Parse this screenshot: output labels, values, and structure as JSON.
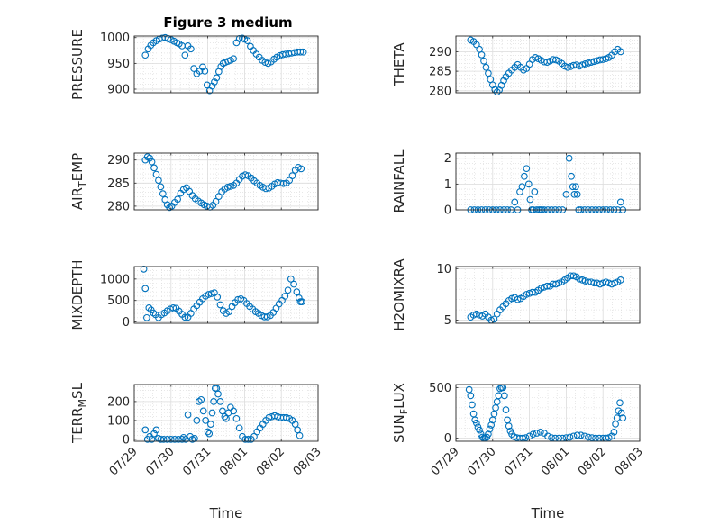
{
  "figure_title": "Figure 3 medium",
  "chart_data": [
    {
      "type": "scatter",
      "position": "top-left",
      "ylabel": "PRESSURE",
      "xlabel": "",
      "ylim": [
        893,
        1003
      ],
      "yticks": [
        900,
        950,
        1000
      ],
      "xlim": [
        0,
        5
      ],
      "grid": true,
      "marker": "circle",
      "color": "#0072BD",
      "x": [
        0.3,
        0.38,
        0.45,
        0.52,
        0.6,
        0.68,
        0.76,
        0.84,
        0.92,
        1.0,
        1.08,
        1.16,
        1.22,
        1.3,
        1.38,
        1.46,
        1.54,
        1.62,
        1.7,
        1.78,
        1.86,
        1.92,
        1.98,
        2.05,
        2.12,
        2.18,
        2.24,
        2.3,
        2.36,
        2.42,
        2.48,
        2.55,
        2.62,
        2.7,
        2.78,
        2.86,
        2.94,
        3.0,
        3.08,
        3.16,
        3.24,
        3.32,
        3.4,
        3.48,
        3.56,
        3.64,
        3.72,
        3.8,
        3.88,
        3.96,
        4.04,
        4.12,
        4.2,
        4.28,
        4.36,
        4.44,
        4.52,
        4.6
      ],
      "y": [
        966,
        978,
        985,
        990,
        994,
        997,
        999,
        1000,
        998,
        996,
        993,
        990,
        988,
        984,
        966,
        984,
        978,
        940,
        930,
        935,
        943,
        935,
        908,
        897,
        906,
        914,
        922,
        934,
        944,
        950,
        952,
        954,
        956,
        959,
        990,
        998,
        999,
        997,
        994,
        983,
        975,
        968,
        962,
        956,
        952,
        950,
        953,
        958,
        962,
        965,
        967,
        968,
        969,
        970,
        971,
        972,
        972,
        972
      ]
    },
    {
      "type": "scatter",
      "position": "top-right",
      "ylabel": "THETA",
      "xlabel": "",
      "ylim": [
        279.5,
        294
      ],
      "yticks": [
        280,
        285,
        290
      ],
      "xlim": [
        0,
        5
      ],
      "grid": true,
      "marker": "circle",
      "color": "#0072BD",
      "x": [
        0.4,
        0.48,
        0.56,
        0.64,
        0.7,
        0.76,
        0.82,
        0.88,
        0.94,
        1.0,
        1.06,
        1.12,
        1.18,
        1.24,
        1.3,
        1.36,
        1.44,
        1.52,
        1.6,
        1.68,
        1.76,
        1.84,
        1.92,
        2.0,
        2.08,
        2.16,
        2.24,
        2.32,
        2.4,
        2.48,
        2.56,
        2.64,
        2.72,
        2.8,
        2.88,
        2.96,
        3.04,
        3.12,
        3.2,
        3.28,
        3.36,
        3.44,
        3.52,
        3.6,
        3.68,
        3.76,
        3.84,
        3.92,
        4.0,
        4.08,
        4.16,
        4.24,
        4.32,
        4.4,
        4.48
      ],
      "y": [
        293,
        292.6,
        291.8,
        290.6,
        289.2,
        287.6,
        286.0,
        284.5,
        282.9,
        281.5,
        280.3,
        279.7,
        280.2,
        281.4,
        282.6,
        283.6,
        284.5,
        285.3,
        286.0,
        286.7,
        286.0,
        285.3,
        285.7,
        286.8,
        288.0,
        288.5,
        288.2,
        287.8,
        287.4,
        287.3,
        287.6,
        288.0,
        287.9,
        287.6,
        287.0,
        286.3,
        286.0,
        286.2,
        286.5,
        286.6,
        286.3,
        286.6,
        286.9,
        287.1,
        287.3,
        287.5,
        287.7,
        287.9,
        288.0,
        288.2,
        288.5,
        289.1,
        290.0,
        290.6,
        290.0
      ]
    },
    {
      "type": "scatter",
      "position": "second-row-left",
      "ylabel": "AIR_TEMP",
      "xlabel": "",
      "ylim": [
        279.2,
        291.5
      ],
      "yticks": [
        280,
        285,
        290
      ],
      "xlim": [
        0,
        5
      ],
      "grid": true,
      "marker": "circle",
      "color": "#0072BD",
      "x": [
        0.3,
        0.36,
        0.42,
        0.48,
        0.54,
        0.6,
        0.66,
        0.72,
        0.78,
        0.84,
        0.9,
        0.96,
        1.02,
        1.1,
        1.18,
        1.26,
        1.34,
        1.42,
        1.5,
        1.58,
        1.66,
        1.74,
        1.82,
        1.9,
        1.98,
        2.06,
        2.14,
        2.22,
        2.3,
        2.38,
        2.46,
        2.54,
        2.62,
        2.7,
        2.78,
        2.86,
        2.94,
        3.02,
        3.1,
        3.18,
        3.26,
        3.34,
        3.42,
        3.5,
        3.58,
        3.66,
        3.74,
        3.82,
        3.9,
        3.98,
        4.06,
        4.14,
        4.22,
        4.3,
        4.38,
        4.46,
        4.54
      ],
      "y": [
        290.0,
        290.7,
        290.4,
        289.6,
        288.3,
        286.9,
        285.6,
        284.2,
        282.7,
        281.4,
        280.3,
        279.7,
        280.0,
        280.8,
        281.5,
        282.8,
        283.6,
        284.0,
        283.2,
        282.3,
        281.6,
        281.1,
        280.7,
        280.3,
        280.0,
        279.8,
        280.2,
        281.0,
        282.1,
        283.1,
        283.7,
        284.1,
        284.3,
        284.5,
        285.0,
        285.8,
        286.5,
        286.8,
        286.6,
        286.1,
        285.5,
        285.0,
        284.5,
        284.1,
        283.8,
        283.9,
        284.3,
        284.8,
        285.1,
        285.0,
        284.9,
        285.0,
        285.6,
        286.6,
        287.8,
        288.4,
        288.1
      ]
    },
    {
      "type": "scatter",
      "position": "second-row-right",
      "ylabel": "RAINFALL",
      "xlabel": "",
      "ylim": [
        0,
        2.2
      ],
      "yticks": [
        0,
        1,
        2
      ],
      "xlim": [
        0,
        5
      ],
      "grid": true,
      "marker": "circle",
      "color": "#0072BD",
      "x": [
        0.4,
        0.5,
        0.6,
        0.7,
        0.8,
        0.9,
        1.0,
        1.1,
        1.2,
        1.3,
        1.4,
        1.5,
        1.6,
        1.68,
        1.74,
        1.8,
        1.86,
        1.92,
        1.98,
        2.02,
        2.06,
        2.1,
        2.14,
        2.2,
        2.26,
        2.3,
        2.34,
        2.4,
        2.5,
        2.6,
        2.7,
        2.8,
        2.9,
        3.0,
        3.08,
        3.14,
        3.18,
        3.22,
        3.26,
        3.3,
        3.34,
        3.4,
        3.5,
        3.6,
        3.7,
        3.8,
        3.9,
        4.0,
        4.1,
        4.2,
        4.3,
        4.4,
        4.48,
        4.54
      ],
      "y": [
        0,
        0,
        0,
        0,
        0,
        0,
        0,
        0,
        0,
        0,
        0,
        0,
        0.3,
        0,
        0.7,
        0.9,
        1.3,
        1.6,
        1.0,
        0.4,
        0,
        0,
        0.7,
        0,
        0,
        0,
        0,
        0,
        0,
        0,
        0,
        0,
        0,
        0.6,
        2.0,
        1.3,
        0.9,
        0.6,
        0.9,
        0.6,
        0,
        0,
        0,
        0,
        0,
        0,
        0,
        0,
        0,
        0,
        0,
        0,
        0.3,
        0
      ]
    },
    {
      "type": "scatter",
      "position": "third-row-left",
      "ylabel": "MIXDEPTH",
      "xlabel": "",
      "ylim": [
        -30,
        1290
      ],
      "yticks": [
        0,
        500,
        1000
      ],
      "xlim": [
        0,
        5
      ],
      "grid": true,
      "marker": "circle",
      "color": "#0072BD",
      "x": [
        0.26,
        0.3,
        0.34,
        0.4,
        0.46,
        0.52,
        0.58,
        0.66,
        0.74,
        0.82,
        0.9,
        0.98,
        1.06,
        1.14,
        1.22,
        1.3,
        1.38,
        1.46,
        1.54,
        1.62,
        1.7,
        1.78,
        1.86,
        1.94,
        2.02,
        2.1,
        2.18,
        2.26,
        2.34,
        2.42,
        2.5,
        2.58,
        2.66,
        2.74,
        2.82,
        2.9,
        2.98,
        3.06,
        3.14,
        3.22,
        3.3,
        3.38,
        3.46,
        3.54,
        3.62,
        3.7,
        3.78,
        3.86,
        3.94,
        4.02,
        4.1,
        4.18,
        4.26,
        4.34,
        4.42,
        4.48,
        4.52,
        4.56
      ],
      "y": [
        1230,
        780,
        100,
        330,
        280,
        210,
        170,
        100,
        170,
        210,
        260,
        300,
        330,
        320,
        250,
        180,
        110,
        110,
        200,
        300,
        380,
        460,
        540,
        600,
        640,
        660,
        680,
        580,
        400,
        260,
        200,
        240,
        360,
        450,
        520,
        540,
        500,
        430,
        360,
        300,
        240,
        200,
        150,
        120,
        120,
        150,
        220,
        320,
        420,
        500,
        600,
        740,
        1000,
        880,
        700,
        560,
        470,
        470
      ]
    },
    {
      "type": "scatter",
      "position": "third-row-right",
      "ylabel": "H2OMIXRA",
      "xlabel": "",
      "ylim": [
        4.7,
        10.2
      ],
      "yticks": [
        5,
        10
      ],
      "xlim": [
        0,
        5
      ],
      "grid": true,
      "marker": "circle",
      "color": "#0072BD",
      "x": [
        0.4,
        0.48,
        0.56,
        0.64,
        0.72,
        0.8,
        0.88,
        0.96,
        1.04,
        1.12,
        1.2,
        1.28,
        1.36,
        1.44,
        1.52,
        1.6,
        1.68,
        1.76,
        1.84,
        1.92,
        2.0,
        2.08,
        2.16,
        2.24,
        2.32,
        2.4,
        2.48,
        2.56,
        2.64,
        2.72,
        2.8,
        2.88,
        2.96,
        3.04,
        3.12,
        3.2,
        3.28,
        3.36,
        3.44,
        3.52,
        3.6,
        3.68,
        3.76,
        3.84,
        3.92,
        4.0,
        4.08,
        4.16,
        4.24,
        4.32,
        4.4,
        4.48
      ],
      "y": [
        5.3,
        5.5,
        5.6,
        5.5,
        5.4,
        5.6,
        5.3,
        5.0,
        5.1,
        5.6,
        6.0,
        6.3,
        6.6,
        6.9,
        7.1,
        7.2,
        7.0,
        7.1,
        7.3,
        7.5,
        7.6,
        7.7,
        7.7,
        7.9,
        8.1,
        8.2,
        8.3,
        8.3,
        8.5,
        8.5,
        8.6,
        8.7,
        8.9,
        9.1,
        9.3,
        9.3,
        9.2,
        9.0,
        8.9,
        8.8,
        8.7,
        8.7,
        8.6,
        8.6,
        8.5,
        8.6,
        8.7,
        8.6,
        8.5,
        8.6,
        8.7,
        8.9
      ]
    },
    {
      "type": "scatter",
      "position": "bottom-left",
      "ylabel": "TERR_MSL",
      "xlabel": "Time",
      "ylim": [
        -10,
        290
      ],
      "yticks": [
        0,
        100,
        200
      ],
      "xlim": [
        0,
        5
      ],
      "xticks": [
        0,
        1,
        2,
        3,
        4,
        5
      ],
      "xticklabels": [
        "07/29",
        "07/30",
        "07/31",
        "08/01",
        "08/02",
        "08/03"
      ],
      "grid": true,
      "marker": "circle",
      "color": "#0072BD",
      "x": [
        0.3,
        0.36,
        0.42,
        0.48,
        0.54,
        0.6,
        0.66,
        0.72,
        0.8,
        0.9,
        1.0,
        1.1,
        1.2,
        1.3,
        1.34,
        1.4,
        1.46,
        1.52,
        1.58,
        1.64,
        1.7,
        1.76,
        1.82,
        1.88,
        1.94,
        2.0,
        2.04,
        2.08,
        2.12,
        2.16,
        2.2,
        2.24,
        2.28,
        2.34,
        2.4,
        2.46,
        2.5,
        2.56,
        2.62,
        2.7,
        2.78,
        2.86,
        2.94,
        3.02,
        3.1,
        3.18,
        3.26,
        3.34,
        3.42,
        3.5,
        3.58,
        3.66,
        3.74,
        3.82,
        3.9,
        3.98,
        4.06,
        4.14,
        4.22,
        4.3,
        4.38,
        4.44,
        4.5
      ],
      "y": [
        50,
        0,
        15,
        0,
        30,
        50,
        5,
        0,
        0,
        0,
        0,
        0,
        0,
        0,
        10,
        0,
        130,
        15,
        0,
        5,
        100,
        200,
        210,
        150,
        100,
        40,
        30,
        80,
        140,
        200,
        270,
        270,
        240,
        200,
        150,
        120,
        110,
        140,
        170,
        150,
        110,
        60,
        15,
        0,
        0,
        0,
        15,
        40,
        60,
        80,
        100,
        115,
        120,
        125,
        120,
        115,
        115,
        115,
        110,
        100,
        80,
        50,
        20
      ]
    },
    {
      "type": "scatter",
      "position": "bottom-right",
      "ylabel": "SUN_FLUX",
      "xlabel": "Time",
      "ylim": [
        -30,
        530
      ],
      "yticks": [
        0,
        500
      ],
      "xlim": [
        0,
        5
      ],
      "xticks": [
        0,
        1,
        2,
        3,
        4,
        5
      ],
      "xticklabels": [
        "07/29",
        "07/30",
        "07/31",
        "08/01",
        "08/02",
        "08/03"
      ],
      "grid": true,
      "marker": "circle",
      "color": "#0072BD",
      "x": [
        0.36,
        0.4,
        0.44,
        0.48,
        0.52,
        0.56,
        0.6,
        0.64,
        0.68,
        0.72,
        0.76,
        0.8,
        0.84,
        0.88,
        0.92,
        0.96,
        1.0,
        1.04,
        1.08,
        1.12,
        1.16,
        1.2,
        1.24,
        1.28,
        1.32,
        1.36,
        1.4,
        1.44,
        1.48,
        1.52,
        1.58,
        1.66,
        1.74,
        1.82,
        1.9,
        2.0,
        2.1,
        2.2,
        2.3,
        2.4,
        2.5,
        2.6,
        2.7,
        2.8,
        2.9,
        3.0,
        3.1,
        3.2,
        3.3,
        3.4,
        3.5,
        3.6,
        3.7,
        3.8,
        3.9,
        4.0,
        4.08,
        4.16,
        4.24,
        4.3,
        4.34,
        4.38,
        4.42,
        4.46,
        4.5,
        4.54
      ],
      "y": [
        480,
        420,
        330,
        240,
        180,
        150,
        110,
        80,
        40,
        10,
        0,
        0,
        10,
        40,
        90,
        130,
        180,
        240,
        300,
        360,
        420,
        490,
        500,
        500,
        420,
        280,
        180,
        120,
        70,
        40,
        15,
        5,
        0,
        0,
        5,
        20,
        40,
        50,
        60,
        50,
        20,
        5,
        0,
        0,
        0,
        5,
        10,
        20,
        30,
        30,
        20,
        10,
        5,
        0,
        0,
        0,
        0,
        5,
        20,
        60,
        140,
        200,
        270,
        350,
        250,
        200
      ]
    }
  ]
}
